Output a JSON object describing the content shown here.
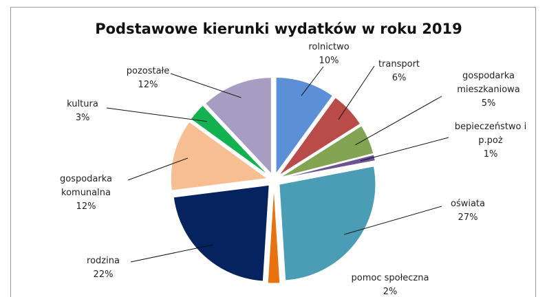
{
  "chart_data": {
    "type": "pie",
    "title": "Podstawowe kierunki wydatków w roku 2019",
    "categories": [
      "rolnictwo",
      "transport",
      "gospodarka mieszkaniowa",
      "bepieczeństwo i p.poż",
      "oświata",
      "pomoc społeczna",
      "rodzina",
      "gospodarka komunalna",
      "kultura",
      "pozostałe"
    ],
    "values": [
      10,
      6,
      5,
      1,
      27,
      2,
      22,
      12,
      3,
      12
    ],
    "value_labels": [
      "10%",
      "6%",
      "5%",
      "1%",
      "27%",
      "2%",
      "22%",
      "12%",
      "3%",
      "12%"
    ],
    "colors": [
      "#5b8fd6",
      "#b94c48",
      "#83a553",
      "#6a5592",
      "#4a9db5",
      "#e8720f",
      "#05235e",
      "#f7be92",
      "#14b150",
      "#a79dc2"
    ]
  }
}
